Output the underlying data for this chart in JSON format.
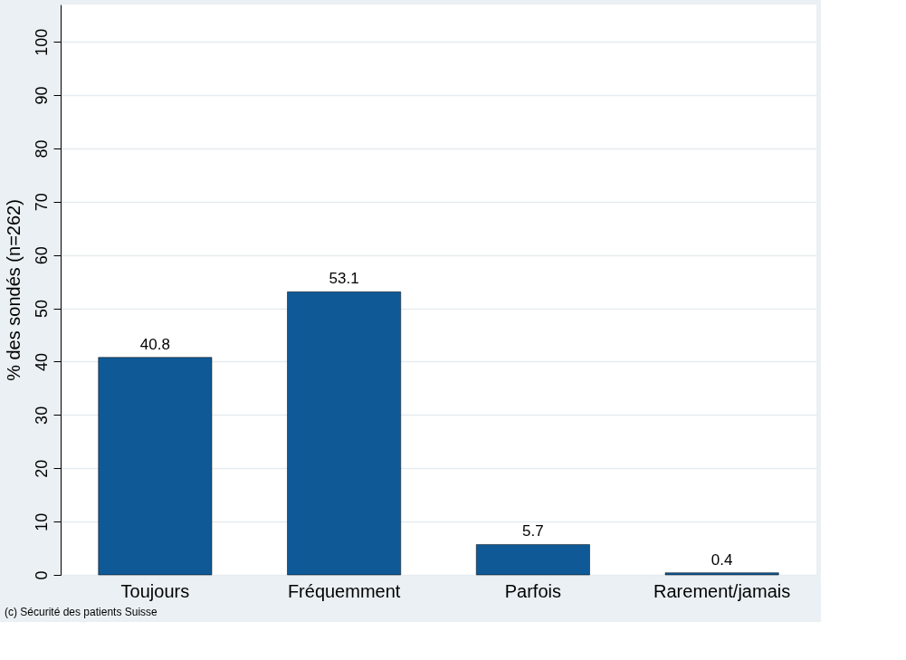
{
  "chart_data": {
    "type": "bar",
    "ylabel": "% des sondés (n=262)",
    "categories": [
      "Toujours",
      "Fréquemment",
      "Parfois",
      "Rarement/jamais"
    ],
    "values": [
      40.8,
      53.1,
      5.7,
      0.4
    ],
    "color": "#0f5a96",
    "ylim": [
      0,
      107
    ],
    "yticks": [
      0,
      10,
      20,
      30,
      40,
      50,
      60,
      70,
      80,
      90,
      100
    ],
    "grid": "y",
    "data_labels": true,
    "annotations": [
      "(c) Sécurité des patients Suisse"
    ]
  }
}
